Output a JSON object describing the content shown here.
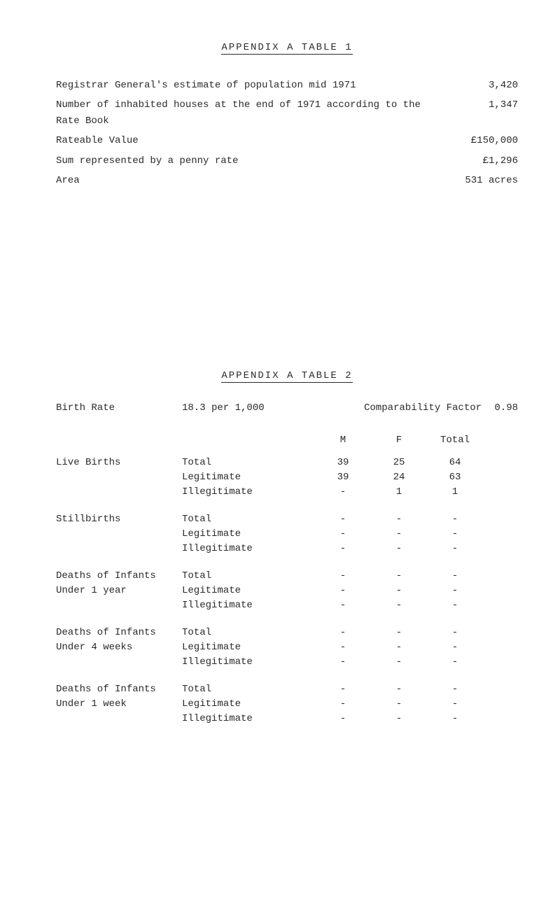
{
  "appendix1": {
    "title": "APPENDIX   A     TABLE    1",
    "rows": [
      {
        "label": "Registrar General's estimate of population mid 1971",
        "value": "3,420"
      },
      {
        "label": "Number of inhabited houses at the end of 1971 according to the Rate Book",
        "value": "1,347"
      },
      {
        "label": "Rateable Value",
        "value": "£150,000"
      },
      {
        "label": "Sum represented by a penny rate",
        "value": "£1,296"
      },
      {
        "label": "Area",
        "value": "531 acres"
      }
    ]
  },
  "appendix2": {
    "title": "APPENDIX  A    TABLE    2",
    "rate_row": {
      "left": "Birth Rate",
      "mid": "18.3 per 1,000",
      "right_label": "Comparability Factor",
      "right_value": "0.98"
    },
    "headers": {
      "m": "M",
      "f": "F",
      "total": "Total"
    },
    "groups": [
      {
        "label_lines": [
          "Live Births"
        ],
        "rows": [
          {
            "label": "Total",
            "m": "39",
            "f": "25",
            "total": "64"
          },
          {
            "label": "Legitimate",
            "m": "39",
            "f": "24",
            "total": "63"
          },
          {
            "label": "Illegitimate",
            "m": "-",
            "f": "1",
            "total": "1"
          }
        ]
      },
      {
        "label_lines": [
          "Stillbirths"
        ],
        "rows": [
          {
            "label": "Total",
            "m": "-",
            "f": "-",
            "total": "-"
          },
          {
            "label": "Legitimate",
            "m": "-",
            "f": "-",
            "total": "-"
          },
          {
            "label": "Illegitimate",
            "m": "-",
            "f": "-",
            "total": "-"
          }
        ]
      },
      {
        "label_lines": [
          "Deaths of Infants",
          "Under 1 year"
        ],
        "rows": [
          {
            "label": "Total",
            "m": "-",
            "f": "-",
            "total": "-"
          },
          {
            "label": "Legitimate",
            "m": "-",
            "f": "-",
            "total": "-"
          },
          {
            "label": "Illegitimate",
            "m": "-",
            "f": "-",
            "total": "-"
          }
        ]
      },
      {
        "label_lines": [
          "Deaths of Infants",
          "Under 4 weeks"
        ],
        "rows": [
          {
            "label": "Total",
            "m": "-",
            "f": "-",
            "total": "-"
          },
          {
            "label": "Legitimate",
            "m": "-",
            "f": "-",
            "total": "-"
          },
          {
            "label": "Illegitimate",
            "m": "-",
            "f": "-",
            "total": "-"
          }
        ]
      },
      {
        "label_lines": [
          "Deaths of Infants",
          "Under 1 week"
        ],
        "rows": [
          {
            "label": "Total",
            "m": "-",
            "f": "-",
            "total": "-"
          },
          {
            "label": "Legitimate",
            "m": "-",
            "f": "-",
            "total": "-"
          },
          {
            "label": "Illegitimate",
            "m": "-",
            "f": "-",
            "total": "-"
          }
        ]
      }
    ]
  }
}
